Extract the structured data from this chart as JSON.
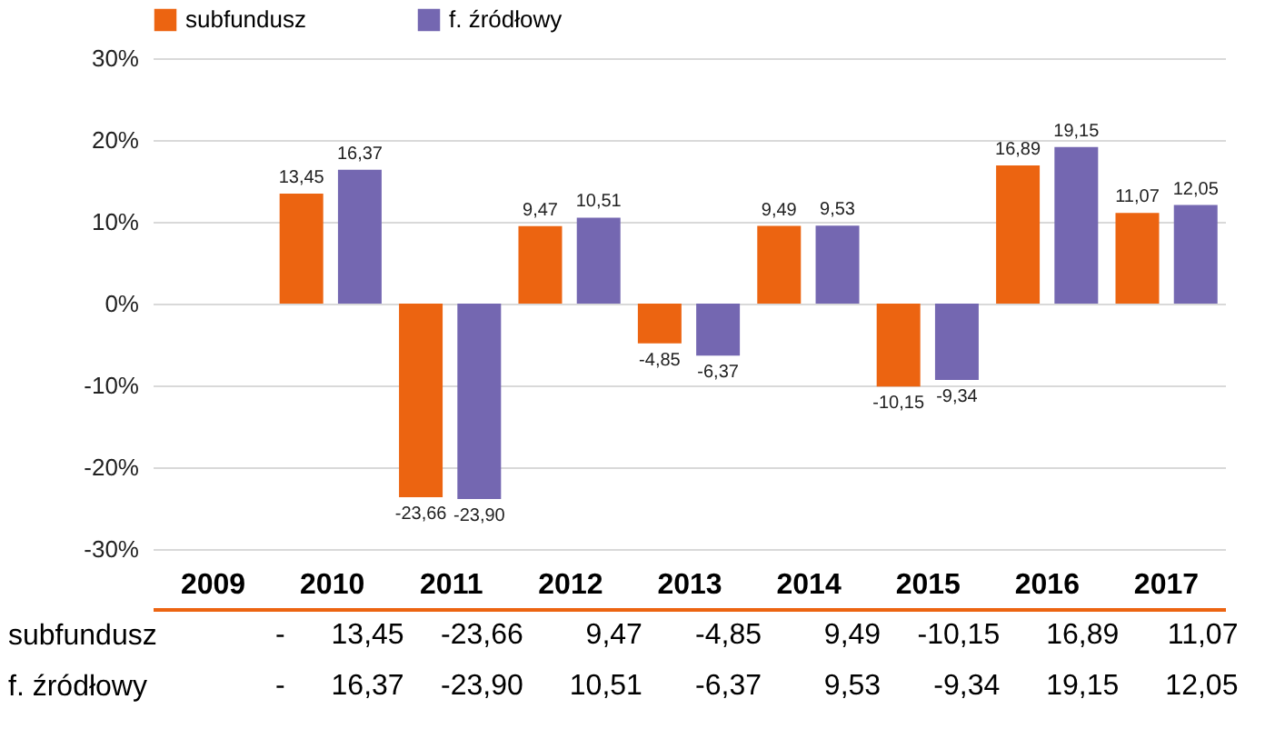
{
  "chart_data": {
    "type": "bar",
    "categories": [
      "2009",
      "2010",
      "2011",
      "2012",
      "2013",
      "2014",
      "2015",
      "2016",
      "2017"
    ],
    "series": [
      {
        "name": "subfundusz",
        "color": "#ec6411",
        "values": [
          null,
          13.45,
          -23.66,
          9.47,
          -4.85,
          9.49,
          -10.15,
          16.89,
          11.07
        ],
        "value_labels": [
          "-",
          "13,45",
          "-23,66",
          "9,47",
          "-4,85",
          "9,49",
          "-10,15",
          "16,89",
          "11,07"
        ]
      },
      {
        "name": "f. źródłowy",
        "color": "#7467b1",
        "values": [
          null,
          16.37,
          -23.9,
          10.51,
          -6.37,
          9.53,
          -9.34,
          19.15,
          12.05
        ],
        "value_labels": [
          "-",
          "16,37",
          "-23,90",
          "10,51",
          "-6,37",
          "9,53",
          "-9,34",
          "19,15",
          "12,05"
        ]
      }
    ],
    "ylim": [
      -30,
      30
    ],
    "yticks": [
      {
        "value": -30,
        "label": "-30%"
      },
      {
        "value": -20,
        "label": "-20%"
      },
      {
        "value": -10,
        "label": "-10%"
      },
      {
        "value": 0,
        "label": "0%"
      },
      {
        "value": 10,
        "label": "10%"
      },
      {
        "value": 20,
        "label": "20%"
      },
      {
        "value": 30,
        "label": "30%"
      }
    ],
    "grid": "y",
    "legend": "top left"
  }
}
